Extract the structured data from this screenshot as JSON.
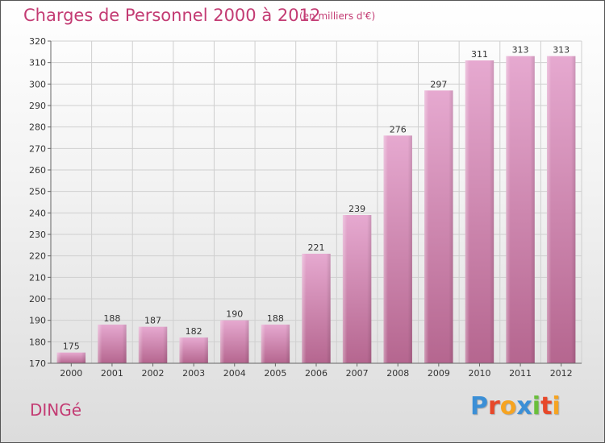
{
  "title": "Charges de Personnel 2000 à 2012",
  "subtitle": "(en milliers d'€)",
  "city": "DINGé",
  "logo": {
    "text": "Proxiti",
    "letters": [
      {
        "ch": "P",
        "color": "#3b8fd6"
      },
      {
        "ch": "r",
        "color": "#e7482a"
      },
      {
        "ch": "o",
        "color": "#f6a421"
      },
      {
        "ch": "x",
        "color": "#3b8fd6"
      },
      {
        "ch": "i",
        "color": "#6abf3b"
      },
      {
        "ch": "t",
        "color": "#e7482a"
      },
      {
        "ch": "i",
        "color": "#f6a421"
      }
    ]
  },
  "colors": {
    "title": "#c33b73",
    "bar_top": "#e6a9d0",
    "bar_bottom": "#b5668f",
    "grid": "#cfcfcf"
  },
  "chart_data": {
    "type": "bar",
    "title": "Charges de Personnel 2000 à 2012",
    "subtitle": "(en milliers d'€)",
    "xlabel": "",
    "ylabel": "",
    "categories": [
      "2000",
      "2001",
      "2002",
      "2003",
      "2004",
      "2005",
      "2006",
      "2007",
      "2008",
      "2009",
      "2010",
      "2011",
      "2012"
    ],
    "values": [
      175,
      188,
      187,
      182,
      190,
      188,
      221,
      239,
      276,
      297,
      311,
      313,
      313
    ],
    "ylim": [
      170,
      320
    ],
    "yticks": [
      170,
      180,
      190,
      200,
      210,
      220,
      230,
      240,
      250,
      260,
      270,
      280,
      290,
      300,
      310,
      320
    ],
    "grid": true,
    "legend": "none"
  }
}
